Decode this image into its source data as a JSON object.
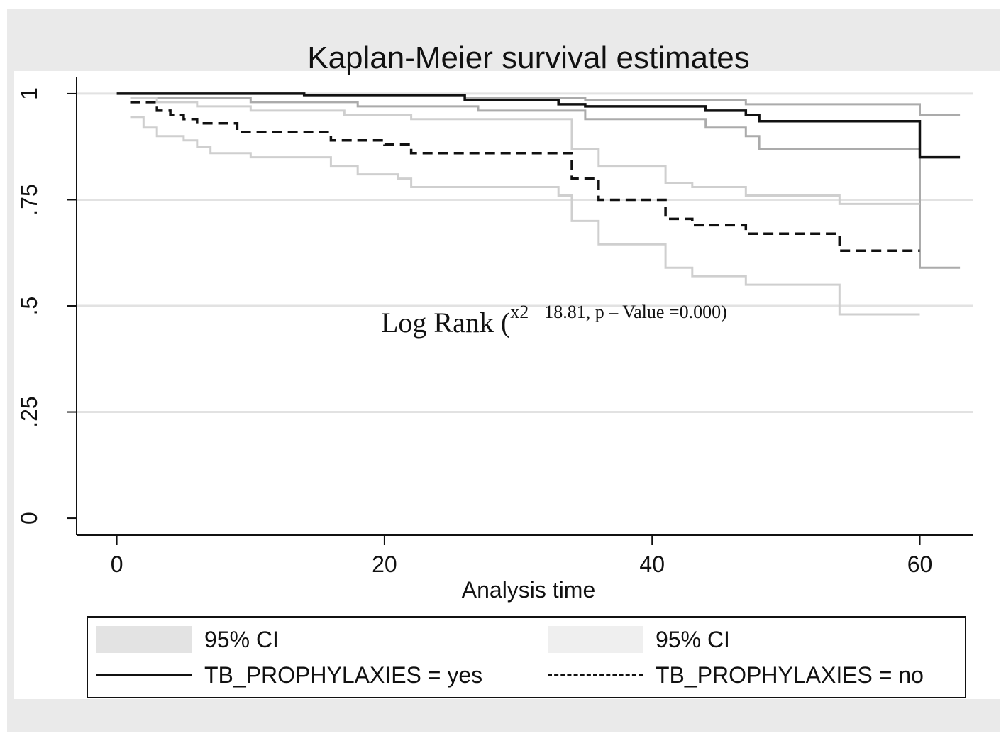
{
  "chart_data": {
    "type": "line",
    "subtype": "kaplan-meier step",
    "title": "Kaplan-Meier survival estimates",
    "xlabel": "Analysis time",
    "ylabel": "",
    "xlim": [
      -3,
      64
    ],
    "ylim": [
      -0.04,
      1.04
    ],
    "x_ticks": [
      0,
      20,
      40,
      60
    ],
    "x_tick_labels": [
      "0",
      "20",
      "40",
      "60"
    ],
    "y_ticks": [
      0,
      0.25,
      0.5,
      0.75,
      1
    ],
    "y_tick_labels": [
      "0",
      ".25",
      ".5",
      ".75",
      "1"
    ],
    "grid": "horizontal",
    "annotation": {
      "main": "Log Rank (",
      "sup": "x2",
      "rest": "18.81, p – Value =0.000)"
    },
    "series": [
      {
        "name": "95% CI upper (yes)",
        "role": "ci",
        "group": "yes",
        "color": "#ababab",
        "points": [
          [
            0,
            1.0
          ],
          [
            14,
            1.0
          ],
          [
            14,
            0.995
          ],
          [
            26,
            0.995
          ],
          [
            26,
            0.99
          ],
          [
            35,
            0.99
          ],
          [
            35,
            0.985
          ],
          [
            47,
            0.985
          ],
          [
            47,
            0.975
          ],
          [
            60,
            0.975
          ],
          [
            60,
            0.95
          ],
          [
            63,
            0.95
          ]
        ]
      },
      {
        "name": "95% CI lower (yes)",
        "role": "ci",
        "group": "yes",
        "color": "#ababab",
        "points": [
          [
            2,
            0.99
          ],
          [
            10,
            0.99
          ],
          [
            10,
            0.98
          ],
          [
            18,
            0.98
          ],
          [
            18,
            0.97
          ],
          [
            27,
            0.97
          ],
          [
            27,
            0.96
          ],
          [
            35,
            0.96
          ],
          [
            35,
            0.94
          ],
          [
            44,
            0.94
          ],
          [
            44,
            0.92
          ],
          [
            47,
            0.92
          ],
          [
            47,
            0.9
          ],
          [
            48,
            0.9
          ],
          [
            48,
            0.87
          ],
          [
            60,
            0.87
          ],
          [
            60,
            0.59
          ],
          [
            63,
            0.59
          ]
        ]
      },
      {
        "name": "95% CI upper (no)",
        "role": "ci",
        "group": "no",
        "color": "#cfcfcf",
        "points": [
          [
            1,
            0.99
          ],
          [
            3,
            0.99
          ],
          [
            3,
            0.98
          ],
          [
            6,
            0.98
          ],
          [
            6,
            0.97
          ],
          [
            10,
            0.97
          ],
          [
            10,
            0.96
          ],
          [
            17,
            0.96
          ],
          [
            17,
            0.95
          ],
          [
            22,
            0.95
          ],
          [
            22,
            0.94
          ],
          [
            34,
            0.94
          ],
          [
            34,
            0.87
          ],
          [
            36,
            0.87
          ],
          [
            36,
            0.83
          ],
          [
            41,
            0.83
          ],
          [
            41,
            0.79
          ],
          [
            43,
            0.79
          ],
          [
            43,
            0.78
          ],
          [
            47,
            0.78
          ],
          [
            47,
            0.76
          ],
          [
            54,
            0.76
          ],
          [
            54,
            0.74
          ],
          [
            60,
            0.74
          ]
        ]
      },
      {
        "name": "95% CI lower (no)",
        "role": "ci",
        "group": "no",
        "color": "#cfcfcf",
        "points": [
          [
            1,
            0.945
          ],
          [
            2,
            0.945
          ],
          [
            2,
            0.92
          ],
          [
            3,
            0.92
          ],
          [
            3,
            0.9
          ],
          [
            5,
            0.9
          ],
          [
            5,
            0.89
          ],
          [
            6,
            0.89
          ],
          [
            6,
            0.875
          ],
          [
            7,
            0.875
          ],
          [
            7,
            0.86
          ],
          [
            10,
            0.86
          ],
          [
            10,
            0.85
          ],
          [
            16,
            0.85
          ],
          [
            16,
            0.83
          ],
          [
            18,
            0.83
          ],
          [
            18,
            0.81
          ],
          [
            21,
            0.81
          ],
          [
            21,
            0.8
          ],
          [
            22,
            0.8
          ],
          [
            22,
            0.78
          ],
          [
            33,
            0.78
          ],
          [
            33,
            0.76
          ],
          [
            34,
            0.76
          ],
          [
            34,
            0.7
          ],
          [
            36,
            0.7
          ],
          [
            36,
            0.645
          ],
          [
            41,
            0.645
          ],
          [
            41,
            0.59
          ],
          [
            43,
            0.59
          ],
          [
            43,
            0.57
          ],
          [
            47,
            0.57
          ],
          [
            47,
            0.55
          ],
          [
            54,
            0.55
          ],
          [
            54,
            0.48
          ],
          [
            60,
            0.48
          ]
        ]
      },
      {
        "name": "TB_PROPHYLAXIES = yes",
        "role": "estimate",
        "group": "yes",
        "color": "#111111",
        "dash": "solid",
        "points": [
          [
            0,
            1.0
          ],
          [
            14,
            1.0
          ],
          [
            14,
            0.997
          ],
          [
            26,
            0.997
          ],
          [
            26,
            0.985
          ],
          [
            33,
            0.985
          ],
          [
            33,
            0.975
          ],
          [
            35,
            0.975
          ],
          [
            35,
            0.97
          ],
          [
            44,
            0.97
          ],
          [
            44,
            0.96
          ],
          [
            47,
            0.96
          ],
          [
            47,
            0.95
          ],
          [
            48,
            0.95
          ],
          [
            48,
            0.935
          ],
          [
            60,
            0.935
          ],
          [
            60,
            0.85
          ],
          [
            63,
            0.85
          ]
        ]
      },
      {
        "name": "TB_PROPHYLAXIES = no",
        "role": "estimate",
        "group": "no",
        "color": "#111111",
        "dash": "dashed",
        "points": [
          [
            1,
            0.98
          ],
          [
            3,
            0.98
          ],
          [
            3,
            0.96
          ],
          [
            4,
            0.96
          ],
          [
            4,
            0.95
          ],
          [
            5,
            0.95
          ],
          [
            5,
            0.94
          ],
          [
            6,
            0.94
          ],
          [
            6,
            0.93
          ],
          [
            9,
            0.93
          ],
          [
            9,
            0.91
          ],
          [
            16,
            0.91
          ],
          [
            16,
            0.89
          ],
          [
            20,
            0.89
          ],
          [
            20,
            0.88
          ],
          [
            22,
            0.88
          ],
          [
            22,
            0.86
          ],
          [
            34,
            0.86
          ],
          [
            34,
            0.8
          ],
          [
            36,
            0.8
          ],
          [
            36,
            0.75
          ],
          [
            41,
            0.75
          ],
          [
            41,
            0.705
          ],
          [
            43,
            0.705
          ],
          [
            43,
            0.69
          ],
          [
            47,
            0.69
          ],
          [
            47,
            0.67
          ],
          [
            54,
            0.67
          ],
          [
            54,
            0.63
          ],
          [
            60,
            0.63
          ]
        ]
      }
    ],
    "legend": {
      "position": "bottom",
      "items": [
        {
          "label": "95% CI",
          "kind": "swatch",
          "color": "#e3e3e3"
        },
        {
          "label": "95% CI",
          "kind": "swatch",
          "color": "#efefef"
        },
        {
          "label": "TB_PROPHYLAXIES = yes",
          "kind": "line",
          "color": "#111111",
          "dash": "solid"
        },
        {
          "label": "TB_PROPHYLAXIES = no",
          "kind": "line",
          "color": "#111111",
          "dash": "dashed"
        }
      ]
    },
    "colors": {
      "background": "#eaeaea",
      "plot_background": "#ffffff",
      "gridline": "#e2e2e2",
      "axis": "#111111"
    }
  }
}
